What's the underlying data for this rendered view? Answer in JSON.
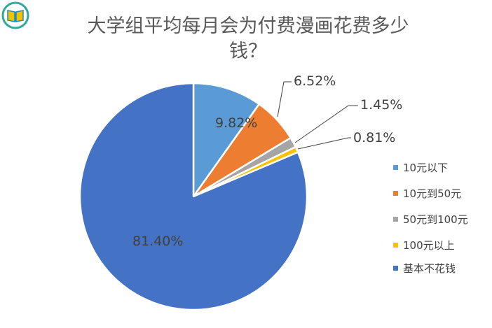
{
  "chart_data": {
    "type": "pie",
    "title_lines": [
      "大学组平均每月会为付费漫画花费多少",
      "钱？"
    ],
    "categories": [
      "10元以下",
      "10元到50元",
      "50元到100元",
      "100元以上",
      "基本不花钱"
    ],
    "values": [
      9.82,
      6.52,
      1.45,
      0.81,
      81.4
    ],
    "value_labels": [
      "9.82%",
      "6.52%",
      "1.45%",
      "0.81%",
      "81.40%"
    ],
    "colors": [
      "#5B9BD5",
      "#ED7D31",
      "#A5A5A5",
      "#FFC000",
      "#4472C4"
    ],
    "start_angle_deg": 0,
    "direction": "clockwise",
    "legend_position": "right"
  },
  "logo": {
    "icon": "book-icon",
    "colors": {
      "ring": "#2FA9A0",
      "book": "#F2C200",
      "accent": "#1E8BC3"
    }
  }
}
